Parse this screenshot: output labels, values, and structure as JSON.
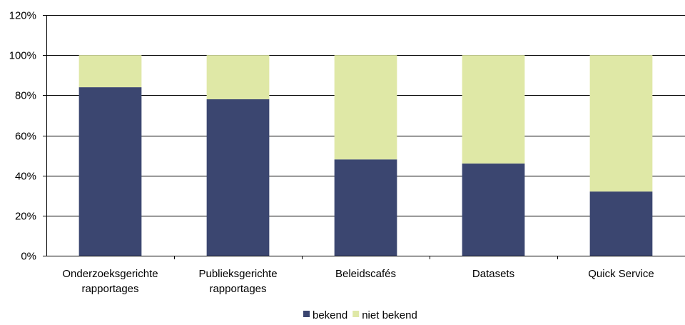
{
  "chart_data": {
    "type": "bar",
    "stacked": true,
    "categories": [
      [
        "Onderzoeksgerichte",
        "rapportages"
      ],
      [
        "Publieksgerichte",
        "rapportages"
      ],
      [
        "Beleidscafés"
      ],
      [
        "Datasets"
      ],
      [
        "Quick Service"
      ]
    ],
    "series": [
      {
        "name": "bekend",
        "color": "#3b4670",
        "values": [
          84,
          78,
          48,
          46,
          32
        ]
      },
      {
        "name": "niet bekend",
        "color": "#dfe8a6",
        "values": [
          16,
          22,
          52,
          54,
          68
        ]
      }
    ],
    "yticks": [
      "0%",
      "20%",
      "40%",
      "60%",
      "80%",
      "100%",
      "120%"
    ],
    "ylim": [
      0,
      120
    ],
    "y_unit": "%",
    "grid": true,
    "legend_position": "bottom"
  }
}
